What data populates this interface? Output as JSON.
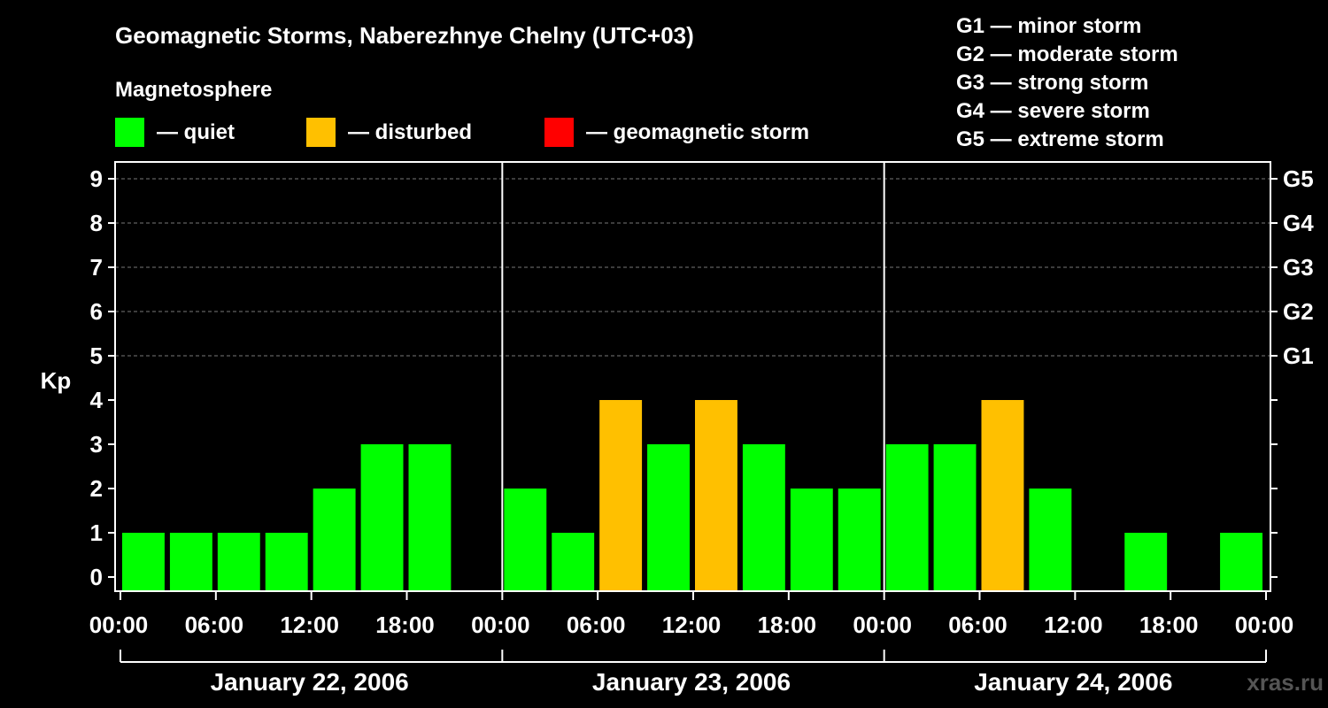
{
  "chart_data": {
    "type": "bar",
    "title": "Geomagnetic Storms, Naberezhnye Chelny (UTC+03)",
    "ylabel": "Kp",
    "ylim": [
      0,
      9
    ],
    "yticks": [
      "0",
      "1",
      "2",
      "3",
      "4",
      "5",
      "6",
      "7",
      "8",
      "9"
    ],
    "right_axis_labels": [
      {
        "kp": 5,
        "label": "G1"
      },
      {
        "kp": 6,
        "label": "G2"
      },
      {
        "kp": 7,
        "label": "G3"
      },
      {
        "kp": 8,
        "label": "G4"
      },
      {
        "kp": 9,
        "label": "G5"
      }
    ],
    "xtick_labels": [
      "00:00",
      "06:00",
      "12:00",
      "18:00",
      "00:00",
      "06:00",
      "12:00",
      "18:00",
      "00:00",
      "06:00",
      "12:00",
      "18:00",
      "00:00"
    ],
    "days": [
      "January 22, 2006",
      "January 23, 2006",
      "January 24, 2006"
    ],
    "interval_hours": 3,
    "values": [
      1,
      1,
      1,
      1,
      2,
      3,
      3,
      null,
      2,
      1,
      4,
      3,
      4,
      3,
      2,
      2,
      3,
      3,
      4,
      2,
      null,
      1,
      null,
      1
    ],
    "grid": "dashed horizontal at Kp 5–9",
    "legend": {
      "title": "Magnetosphere",
      "items": [
        {
          "label": "— quiet",
          "color": "#00ff00"
        },
        {
          "label": "— disturbed",
          "color": "#ffc000"
        },
        {
          "label": "— geomagnetic storm",
          "color": "#ff0000"
        }
      ]
    },
    "storm_scale": [
      "G1 — minor storm",
      "G2 — moderate storm",
      "G3 — strong storm",
      "G4 — severe storm",
      "G5 — extreme storm"
    ],
    "colors": {
      "quiet": "#00ff00",
      "disturbed": "#ffc000",
      "storm": "#ff0000"
    }
  },
  "watermark": "xras.ru"
}
